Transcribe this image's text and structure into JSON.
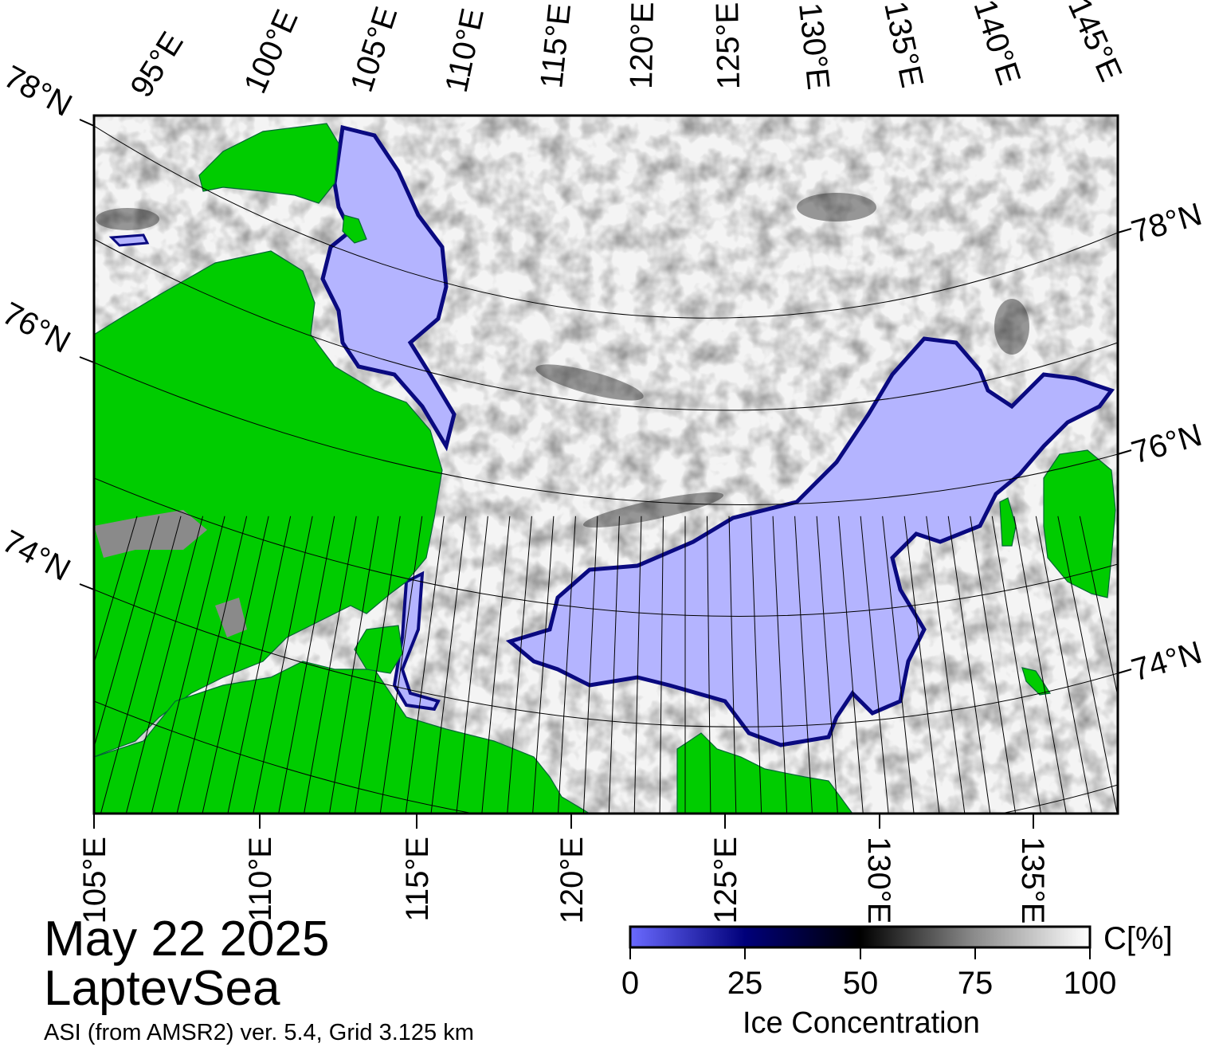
{
  "map": {
    "region": "LaptevSea",
    "date": "May 22 2025",
    "source": "ASI (from AMSR2) ver. 5.4,  Grid 3.125 km",
    "top_lon_labels": [
      "95°E",
      "100°E",
      "105°E",
      "110°E",
      "115°E",
      "120°E",
      "125°E",
      "130°E",
      "135°E",
      "140°E",
      "145°E"
    ],
    "bottom_lon_labels": [
      "105°E",
      "110°E",
      "115°E",
      "120°E",
      "125°E",
      "130°E",
      "135°E"
    ],
    "left_lat_labels": [
      "78°N",
      "76°N",
      "74°N"
    ],
    "right_lat_labels": [
      "78°N",
      "76°N",
      "74°N"
    ],
    "colors": {
      "land": "#00cc00",
      "low_concentration_ice": "#b4b4ff",
      "ice_edge": "#0a0a80",
      "high_concentration_ice": "#ffffff",
      "grey_ice": "#8a8a8a"
    }
  },
  "colorbar": {
    "title": "Ice Concentration",
    "unit": "C[%]",
    "ticks": [
      "0",
      "25",
      "50",
      "75",
      "100"
    ],
    "range": [
      0,
      100
    ],
    "stops": [
      {
        "value": 0,
        "color": "#6a6aff"
      },
      {
        "value": 25,
        "color": "#00007a"
      },
      {
        "value": 50,
        "color": "#000000"
      },
      {
        "value": 75,
        "color": "#8c8c8c"
      },
      {
        "value": 100,
        "color": "#ffffff"
      }
    ]
  }
}
